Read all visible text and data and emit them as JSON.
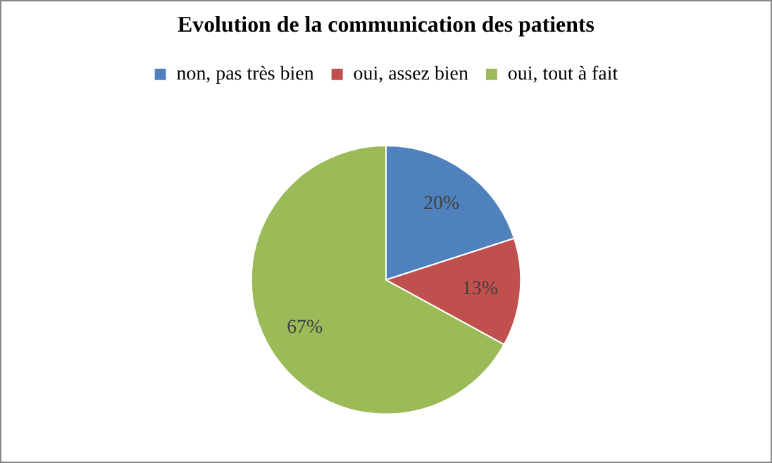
{
  "chart_data": {
    "type": "pie",
    "title": "Evolution de la communication des patients",
    "categories": [
      "non, pas très bien",
      "oui, assez bien",
      "oui, tout à fait"
    ],
    "values": [
      20,
      13,
      67
    ],
    "colors": [
      "#4f81bd",
      "#c0504d",
      "#9bbb59"
    ],
    "value_labels": [
      "20%",
      "13%",
      "67%"
    ],
    "legend": "top"
  }
}
